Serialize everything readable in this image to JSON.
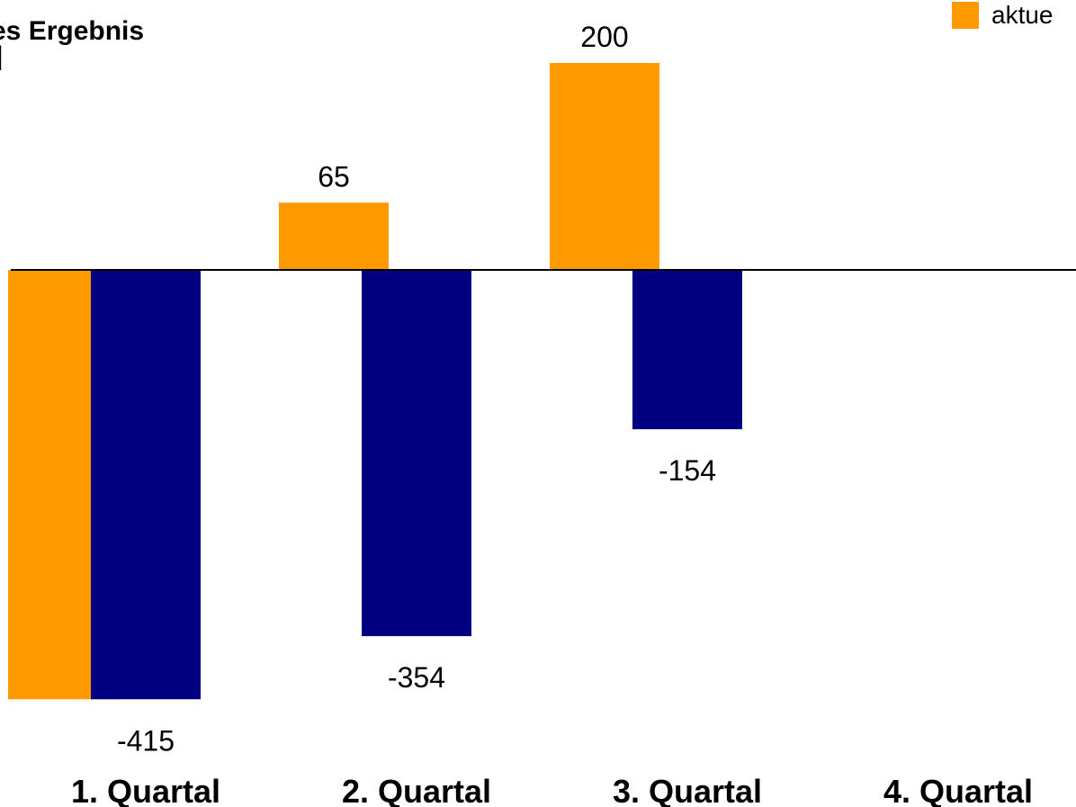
{
  "chart_data": {
    "type": "bar",
    "title": "es Ergebnis",
    "subtitle": "]",
    "categories": [
      "1. Quartal",
      "2. Quartal",
      "3. Quartal",
      "4. Quartal"
    ],
    "series": [
      {
        "name": "aktue",
        "color": "#FF9900",
        "values": [
          -415,
          65,
          200,
          null
        ],
        "labels": [
          "",
          "65",
          "200",
          ""
        ]
      },
      {
        "name": "",
        "color": "#000080",
        "values": [
          -415,
          -354,
          -154,
          null
        ],
        "labels": [
          "-415",
          "-354",
          "-154",
          ""
        ]
      }
    ],
    "ylim": [
      -415,
      200
    ],
    "grid": false,
    "legend_placement": "top-right"
  },
  "colors": {
    "accent": "#FF9900",
    "secondary": "#000080",
    "axis": "#000000"
  }
}
